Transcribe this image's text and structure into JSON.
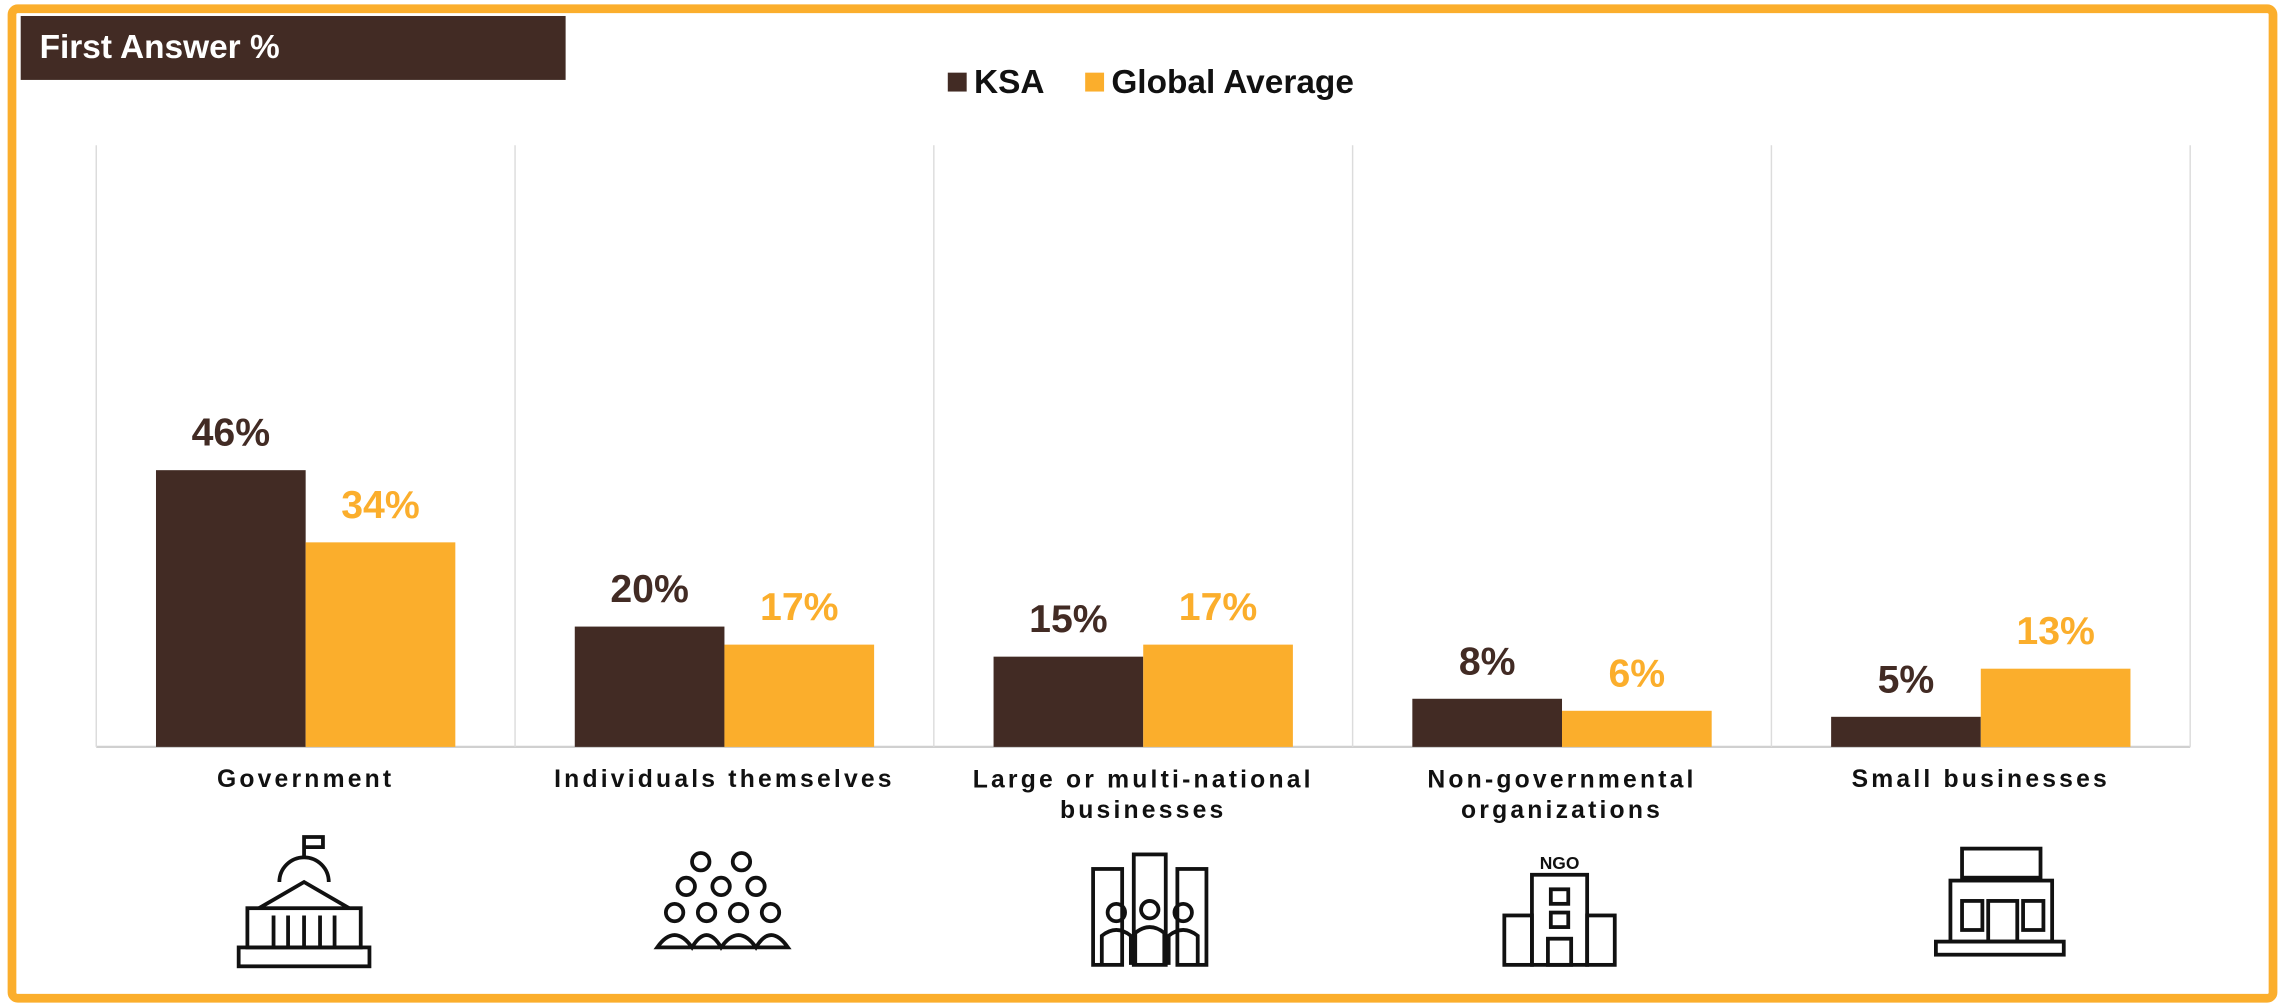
{
  "chart_data": {
    "type": "bar",
    "title": "First Answer %",
    "categories": [
      "Government",
      "Individuals themselves",
      "Large or multi-national businesses",
      "Non-governmental organizations",
      "Small businesses"
    ],
    "series": [
      {
        "name": "KSA",
        "color": "#422b24",
        "values": [
          46,
          20,
          15,
          8,
          5
        ],
        "value_labels": [
          "46%",
          "20%",
          "15%",
          "8%",
          "5%"
        ]
      },
      {
        "name": "Global Average",
        "color": "#fbae2c",
        "values": [
          34,
          17,
          17,
          6,
          13
        ],
        "value_labels": [
          "34%",
          "17%",
          "17%",
          "6%",
          "13%"
        ]
      }
    ],
    "ylim": [
      0,
      100
    ]
  }
}
